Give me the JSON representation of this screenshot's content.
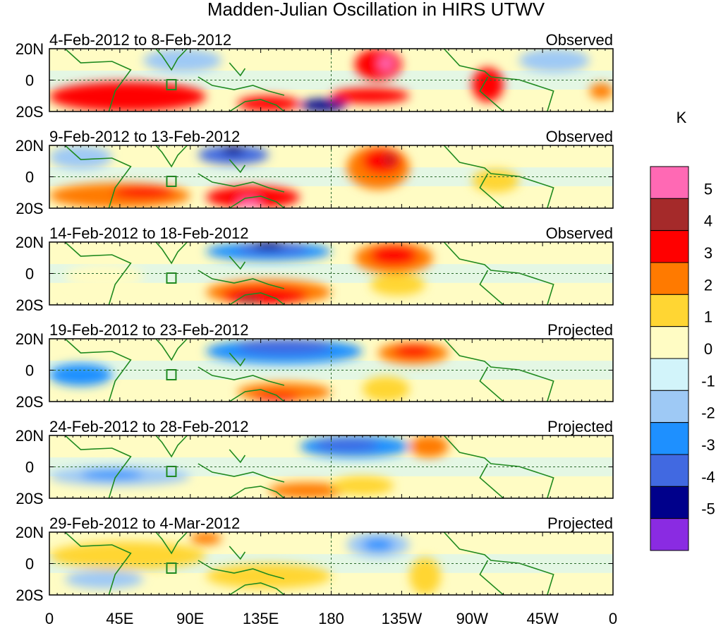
{
  "title": "Madden-Julian Oscillation in HIRS UTWV",
  "colorbar": {
    "unit": "K",
    "colors": [
      "#8a2be2",
      "#00008b",
      "#4169e1",
      "#1e90ff",
      "#9ec9f5",
      "#d2f4fa",
      "#fffcc4",
      "#ffd633",
      "#ff7a00",
      "#ff0000",
      "#a52a2a",
      "#ff69b4"
    ],
    "labels": [
      "-5",
      "-4",
      "-3",
      "-2",
      "-1",
      "0",
      "1",
      "2",
      "3",
      "4",
      "5"
    ]
  },
  "lat_labels": [
    "20N",
    "0",
    "20S"
  ],
  "lon_labels": [
    "0",
    "45E",
    "90E",
    "135E",
    "180",
    "135W",
    "90W",
    "45W",
    "0"
  ],
  "panels": [
    {
      "date": "4-Feb-2012 to 8-Feb-2012",
      "status": "Observed"
    },
    {
      "date": "9-Feb-2012 to 13-Feb-2012",
      "status": "Observed"
    },
    {
      "date": "14-Feb-2012 to 18-Feb-2012",
      "status": "Observed"
    },
    {
      "date": "19-Feb-2012 to 23-Feb-2012",
      "status": "Projected"
    },
    {
      "date": "24-Feb-2012 to 28-Feb-2012",
      "status": "Projected"
    },
    {
      "date": "29-Feb-2012 to 4-Mar-2012",
      "status": "Projected"
    }
  ]
}
